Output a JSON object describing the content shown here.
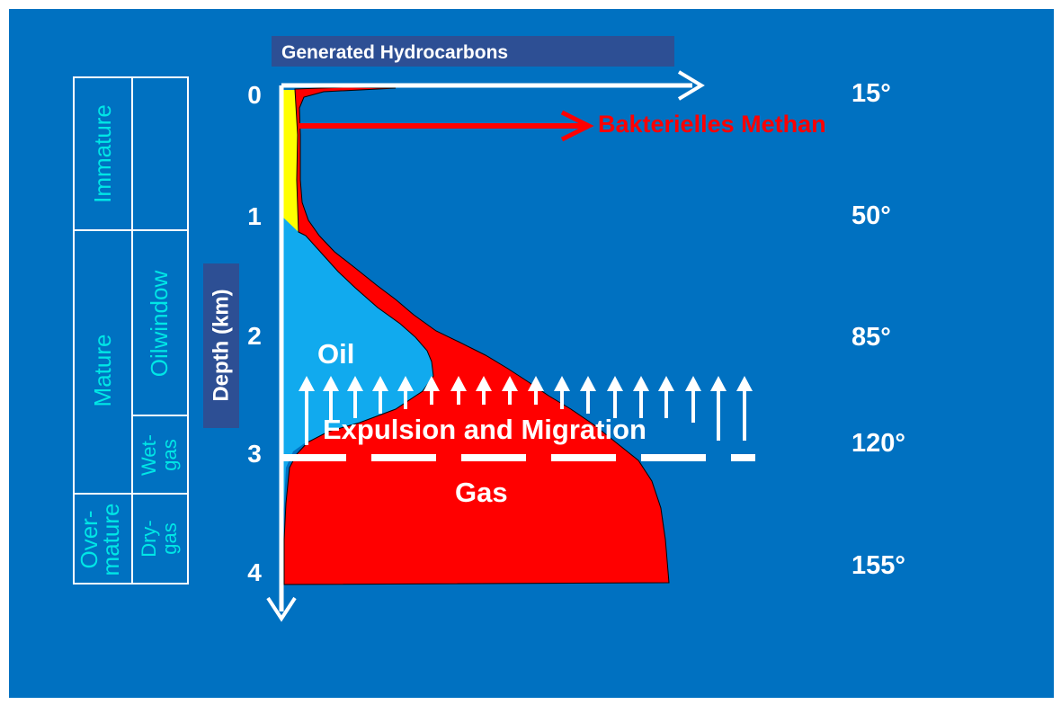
{
  "title": "Generated Hydrocarbons",
  "depth_axis": {
    "label": "Depth (km)",
    "ticks": [
      "0",
      "1",
      "2",
      "3",
      "4"
    ]
  },
  "temperatures": [
    "15°",
    "50°",
    "85°",
    "120°",
    "155°"
  ],
  "bacterial_label": "Bakterielles Methan",
  "oil_label": "Oil",
  "gas_label": "Gas",
  "migration_label": "Expulsion and Migration",
  "maturity": {
    "immature": "Immature",
    "mature": "Mature",
    "overmature_line1": "Over-",
    "overmature_line2": "mature",
    "oilwindow": "Oilwindow",
    "wetgas_line1": "Wet-",
    "wetgas_line2": "gas",
    "drygas_line1": "Dry-",
    "drygas_line2": "gas"
  },
  "colors": {
    "background": "#0071c1",
    "gas": "#ff0000",
    "oil": "#11aaee",
    "immature_hc": "#ffff00",
    "maturity_text": "#00e6e6",
    "title_box": "#2d4f94"
  }
}
